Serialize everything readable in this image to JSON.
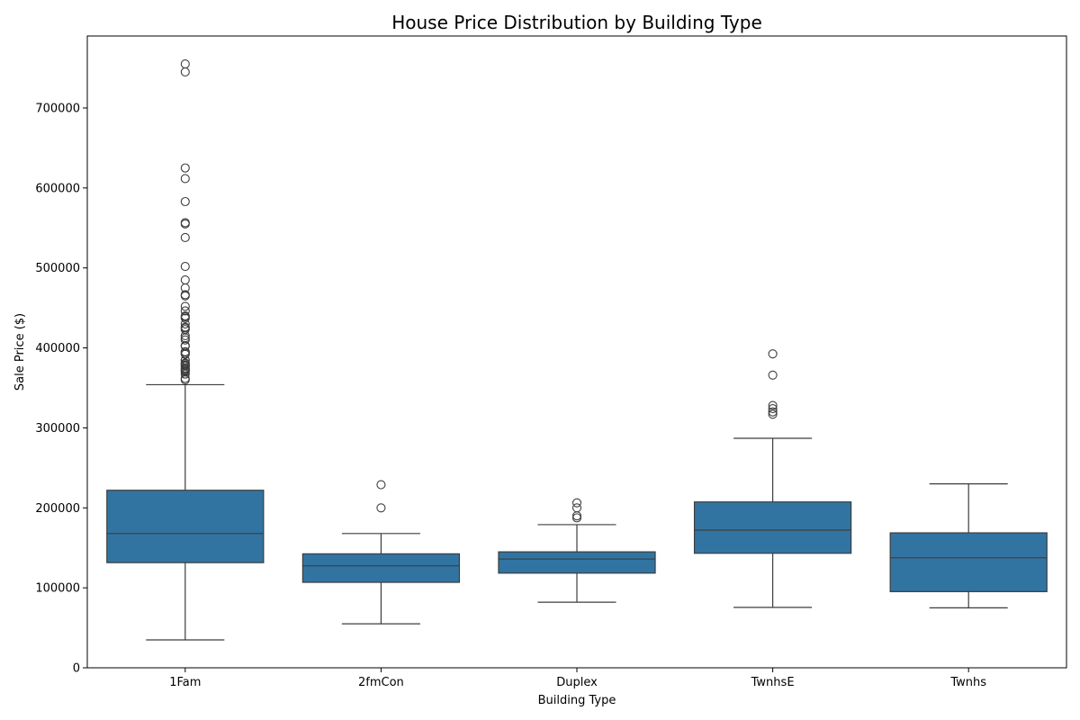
{
  "chart_data": {
    "type": "box",
    "title": "House Price Distribution by Building Type",
    "xlabel": "Building Type",
    "ylabel": "Sale Price ($)",
    "ylim": [
      0,
      790000
    ],
    "yticks": [
      0,
      100000,
      200000,
      300000,
      400000,
      500000,
      600000,
      700000
    ],
    "ytick_labels": [
      "0",
      "100000",
      "200000",
      "300000",
      "400000",
      "500000",
      "600000",
      "700000"
    ],
    "grid": false,
    "box_color": "#3274a1",
    "line_color": "#3d3d3d",
    "categories": [
      "1Fam",
      "2fmCon",
      "Duplex",
      "TwnhsE",
      "Twnhs"
    ],
    "boxes": [
      {
        "category": "1Fam",
        "whisker_low": 34900,
        "q1": 131475,
        "median": 167900,
        "q3": 222000,
        "whisker_high": 354000,
        "outliers": [
          755000,
          745000,
          625000,
          611657,
          582933,
          556581,
          555000,
          538000,
          501837,
          485000,
          475000,
          466500,
          465000,
          451950,
          446261,
          440000,
          438780,
          437154,
          430000,
          426000,
          424870,
          423000,
          415298,
          412500,
          410000,
          402861,
          402000,
          395192,
          394617,
          392500,
          392000,
          385000,
          384500,
          381000,
          380000,
          378500,
          377500,
          377426,
          375000,
          374000,
          372500,
          372402,
          370878,
          369900,
          367294,
          361919,
          360000
        ]
      },
      {
        "category": "2fmCon",
        "whisker_low": 55000,
        "q1": 106875,
        "median": 127500,
        "q3": 142500,
        "whisker_high": 167900,
        "outliers": [
          228950,
          200000
        ]
      },
      {
        "category": "Duplex",
        "whisker_low": 82000,
        "q1": 118375,
        "median": 135980,
        "q3": 145000,
        "whisker_high": 179000,
        "outliers": [
          206300,
          200000,
          190000,
          187500
        ]
      },
      {
        "category": "TwnhsE",
        "whisker_low": 75500,
        "q1": 143187,
        "median": 172200,
        "q3": 207375,
        "whisker_high": 287000,
        "outliers": [
          392500,
          366000,
          328000,
          324000,
          320000,
          317000
        ]
      },
      {
        "category": "Twnhs",
        "whisker_low": 75000,
        "q1": 95250,
        "median": 137500,
        "q3": 168750,
        "whisker_high": 230000,
        "outliers": []
      }
    ]
  }
}
